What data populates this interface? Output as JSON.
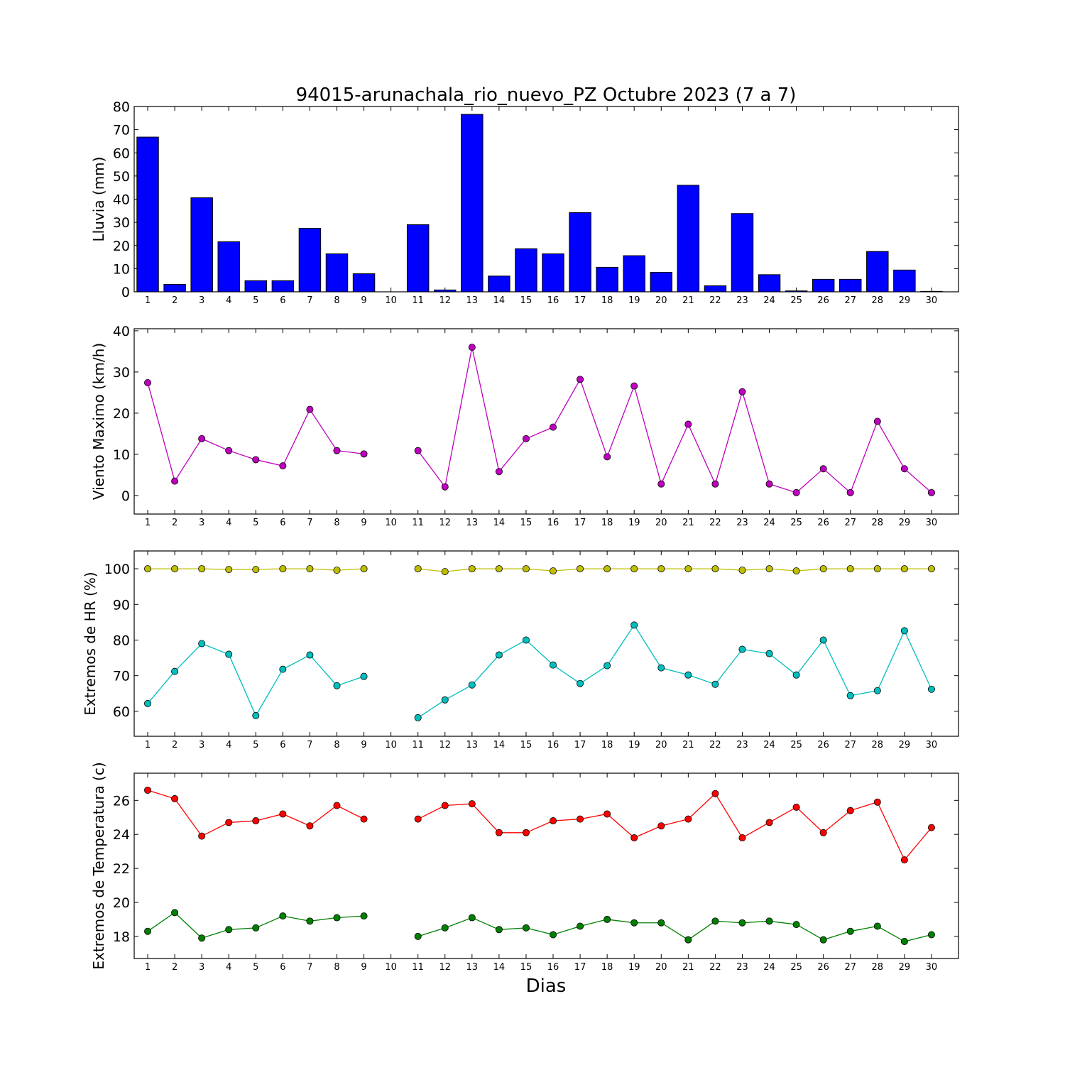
{
  "figure": {
    "title": "94015-arunachala_rio_nuevo_PZ Octubre 2023  (7 a 7)",
    "xlabel": "Dias"
  },
  "chart_data": [
    {
      "type": "bar",
      "ylabel": "Lluvia (mm)",
      "categories": [
        1,
        2,
        3,
        4,
        5,
        6,
        7,
        8,
        9,
        10,
        11,
        12,
        13,
        14,
        15,
        16,
        17,
        18,
        19,
        20,
        21,
        22,
        23,
        24,
        25,
        26,
        27,
        28,
        29,
        30
      ],
      "values": [
        66.8,
        3.2,
        40.6,
        21.6,
        4.8,
        4.8,
        27.4,
        16.4,
        7.8,
        0,
        29,
        0.8,
        76.6,
        6.8,
        18.6,
        16.4,
        34.2,
        10.6,
        15.6,
        8.4,
        46,
        2.6,
        33.8,
        7.4,
        0.4,
        5.4,
        5.4,
        17.4,
        9.4,
        0.2
      ],
      "ylim": [
        0,
        80
      ],
      "yticks": [
        0,
        10,
        20,
        30,
        40,
        50,
        60,
        70,
        80
      ],
      "colors": {
        "bar": "#0000ff"
      }
    },
    {
      "type": "line",
      "ylabel": "Viento Maximo (km/h)",
      "x": [
        1,
        2,
        3,
        4,
        5,
        6,
        7,
        8,
        9,
        10,
        11,
        12,
        13,
        14,
        15,
        16,
        17,
        18,
        19,
        20,
        21,
        22,
        23,
        24,
        25,
        26,
        27,
        28,
        29,
        30
      ],
      "series": [
        {
          "values": [
            27.4,
            3.5,
            13.8,
            10.9,
            8.7,
            7.2,
            20.9,
            10.9,
            10.1,
            null,
            10.9,
            2.1,
            36.0,
            5.8,
            13.8,
            16.6,
            28.2,
            9.4,
            26.6,
            2.8,
            17.3,
            2.8,
            25.2,
            2.8,
            0.7,
            6.5,
            0.7,
            18.0,
            6.5,
            0.7
          ]
        }
      ],
      "ylim": [
        -4.5,
        40.5
      ],
      "yticks": [
        0,
        10,
        20,
        30,
        40
      ],
      "colors": {
        "series": [
          "#bf00bf"
        ]
      }
    },
    {
      "type": "line",
      "ylabel": "Extremos de HR (%)",
      "x": [
        1,
        2,
        3,
        4,
        5,
        6,
        7,
        8,
        9,
        10,
        11,
        12,
        13,
        14,
        15,
        16,
        17,
        18,
        19,
        20,
        21,
        22,
        23,
        24,
        25,
        26,
        27,
        28,
        29,
        30
      ],
      "series": [
        {
          "values": [
            100,
            100,
            100,
            99.8,
            99.8,
            100,
            100,
            99.6,
            100,
            null,
            100,
            99.2,
            100,
            100,
            100,
            99.4,
            100,
            100,
            100,
            100,
            100,
            100,
            99.6,
            100,
            99.4,
            100,
            100,
            100,
            100,
            100
          ]
        },
        {
          "values": [
            62.2,
            71.2,
            79,
            76,
            58.8,
            71.8,
            75.8,
            67.2,
            69.8,
            null,
            58.2,
            63.2,
            67.4,
            75.8,
            80,
            73,
            67.8,
            72.8,
            84.2,
            72.2,
            70.2,
            67.6,
            77.4,
            76.2,
            70.2,
            80,
            64.4,
            65.8,
            82.6,
            66.2
          ]
        }
      ],
      "ylim": [
        53,
        105
      ],
      "yticks": [
        60,
        70,
        80,
        90,
        100
      ],
      "colors": {
        "series": [
          "#bfbf00",
          "#00bfbf"
        ]
      }
    },
    {
      "type": "line",
      "ylabel": "Extremos de Temperatura (c)",
      "x": [
        1,
        2,
        3,
        4,
        5,
        6,
        7,
        8,
        9,
        10,
        11,
        12,
        13,
        14,
        15,
        16,
        17,
        18,
        19,
        20,
        21,
        22,
        23,
        24,
        25,
        26,
        27,
        28,
        29,
        30
      ],
      "series": [
        {
          "values": [
            26.6,
            26.1,
            23.9,
            24.7,
            24.8,
            25.2,
            24.5,
            25.7,
            24.9,
            null,
            24.9,
            25.7,
            25.8,
            24.1,
            24.1,
            24.8,
            24.9,
            25.2,
            23.8,
            24.5,
            24.9,
            26.4,
            23.8,
            24.7,
            25.6,
            24.1,
            25.4,
            25.9,
            22.5,
            24.4
          ]
        },
        {
          "values": [
            18.3,
            19.4,
            17.9,
            18.4,
            18.5,
            19.2,
            18.9,
            19.1,
            19.2,
            null,
            18.0,
            18.5,
            19.1,
            18.4,
            18.5,
            18.1,
            18.6,
            19.0,
            18.8,
            18.8,
            17.8,
            18.9,
            18.8,
            18.9,
            18.7,
            17.8,
            18.3,
            18.6,
            17.7,
            18.1
          ]
        }
      ],
      "ylim": [
        16.7,
        27.6
      ],
      "yticks": [
        18,
        20,
        22,
        24,
        26
      ],
      "colors": {
        "series": [
          "#ff0000",
          "#008000"
        ]
      }
    }
  ]
}
